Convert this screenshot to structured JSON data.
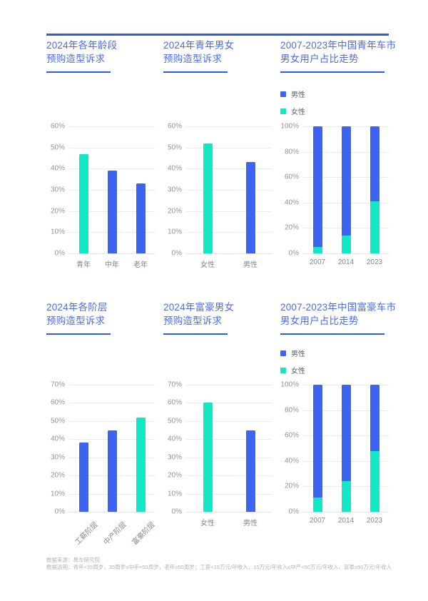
{
  "colors": {
    "blue": "#3D63F2",
    "teal": "#12E8C4",
    "accent_line": "#2F5BE8",
    "title_text": "#4D6BE9"
  },
  "footer": {
    "source": "数据来源：易车研究院",
    "note": "数据说明：青年<35周岁，35周岁≤中年<55周岁，老年≥55周岁；工薪<15万元/年收入、15万元/年收入≤中产<50万元/年收入、富豪≥50万元/年收入"
  },
  "chart_data": [
    {
      "type": "bar",
      "title": "2024年各年龄段预购造型诉求",
      "title_lines": [
        "2024年各年龄段",
        "预购造型诉求"
      ],
      "categories": [
        "青年",
        "中年",
        "老年"
      ],
      "values": [
        47,
        39,
        33
      ],
      "bar_colors": [
        "teal",
        "blue",
        "blue"
      ],
      "ylim": [
        0,
        60
      ],
      "ytick_step": 10,
      "rotate_labels": false,
      "grid": true,
      "legend": null
    },
    {
      "type": "bar",
      "title": "2024年青年男女预购造型诉求",
      "title_lines": [
        "2024年青年男女",
        "预购造型诉求"
      ],
      "categories": [
        "女性",
        "男性"
      ],
      "values": [
        52,
        43
      ],
      "bar_colors": [
        "teal",
        "blue"
      ],
      "ylim": [
        0,
        60
      ],
      "ytick_step": 10,
      "rotate_labels": false,
      "grid": true,
      "legend": null
    },
    {
      "type": "bar",
      "title": "2007-2023年中国青年车市男女用户占比走势",
      "title_lines": [
        "2007-2023年中国青年车市",
        "男女用户占比走势"
      ],
      "categories": [
        "2007",
        "2014",
        "2023"
      ],
      "series": [
        {
          "name": "男性",
          "key": "male",
          "color": "blue",
          "values": [
            95,
            86,
            59
          ]
        },
        {
          "name": "女性",
          "key": "female",
          "color": "teal",
          "values": [
            5,
            14,
            41
          ]
        }
      ],
      "stacked": true,
      "ylim": [
        0,
        100
      ],
      "ytick_step": 20,
      "rotate_labels": false,
      "grid": true,
      "legend_position": "top-left"
    },
    {
      "type": "bar",
      "title": "2024年各阶层预购造型诉求",
      "title_lines": [
        "2024年各阶层",
        "预购造型诉求"
      ],
      "categories": [
        "工薪阶层",
        "中产阶层",
        "富豪阶层"
      ],
      "values": [
        38,
        45,
        52
      ],
      "bar_colors": [
        "blue",
        "blue",
        "teal"
      ],
      "ylim": [
        0,
        70
      ],
      "ytick_step": 10,
      "rotate_labels": true,
      "grid": true,
      "legend": null
    },
    {
      "type": "bar",
      "title": "2024年富豪男女预购造型诉求",
      "title_lines": [
        "2024年富豪男女",
        "预购造型诉求"
      ],
      "categories": [
        "女性",
        "男性"
      ],
      "values": [
        60,
        45
      ],
      "bar_colors": [
        "teal",
        "blue"
      ],
      "ylim": [
        0,
        70
      ],
      "ytick_step": 10,
      "rotate_labels": false,
      "grid": true,
      "legend": null
    },
    {
      "type": "bar",
      "title": "2007-2023年中国富豪车市男女用户占比走势",
      "title_lines": [
        "2007-2023年中国富豪车市",
        "男女用户占比走势"
      ],
      "categories": [
        "2007",
        "2014",
        "2023"
      ],
      "series": [
        {
          "name": "男性",
          "key": "male",
          "color": "blue",
          "values": [
            89,
            76,
            52
          ]
        },
        {
          "name": "女性",
          "key": "female",
          "color": "teal",
          "values": [
            11,
            24,
            48
          ]
        }
      ],
      "stacked": true,
      "ylim": [
        0,
        100
      ],
      "ytick_step": 20,
      "rotate_labels": false,
      "grid": true,
      "legend_position": "top-left"
    }
  ]
}
